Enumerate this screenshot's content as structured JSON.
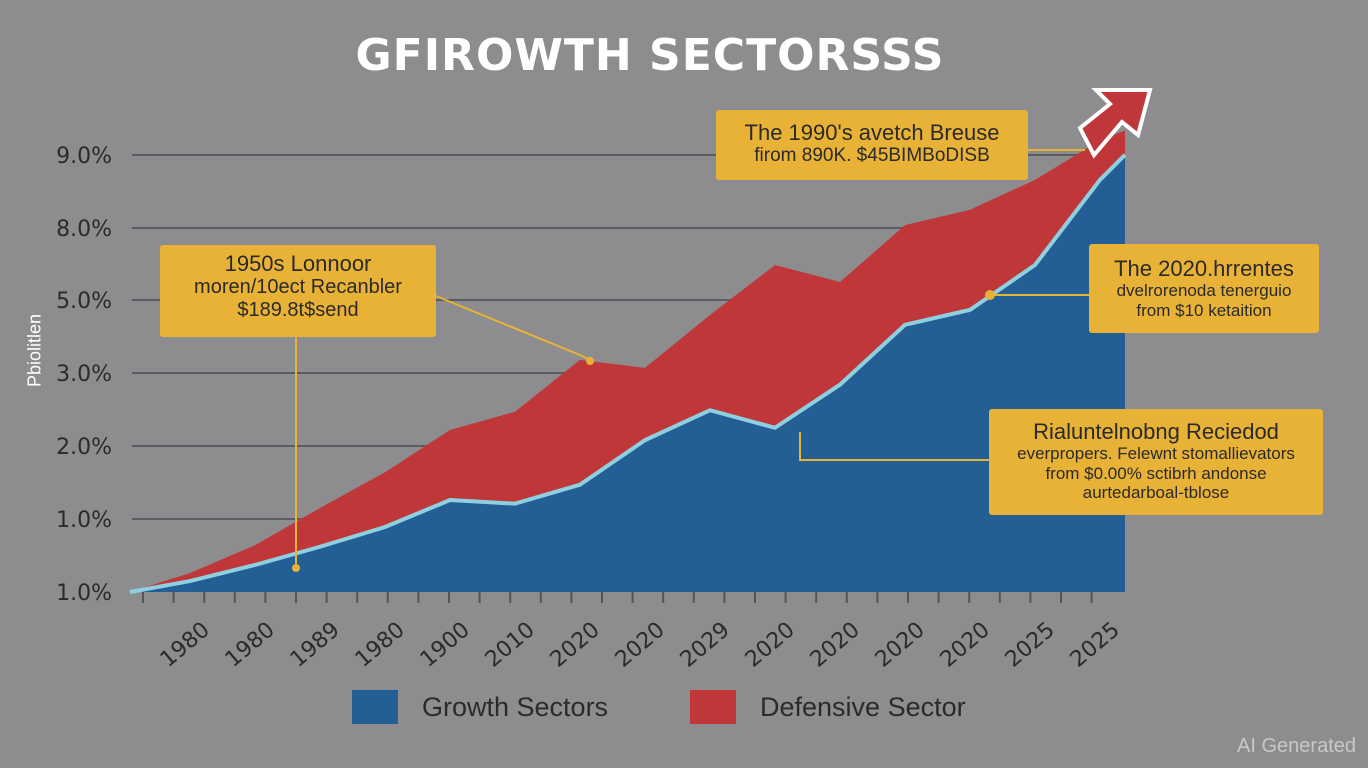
{
  "title": "GFIROWTH SECTORSSS",
  "watermark": "AI Generated",
  "colors": {
    "background": "#8d8d90",
    "growth": "#235f94",
    "defensive": "#c0373a",
    "growth_line": "#8fd0e0",
    "annotation": "#e8b236"
  },
  "annotations": [
    {
      "lines": [
        "1950s Lonnoor",
        "moren/10ect Recanbler",
        "$189.8t$send"
      ]
    },
    {
      "lines": [
        "The 1990's avetch Breuse",
        "firom 890K. $45BIMBoDISB"
      ]
    },
    {
      "lines": [
        "The 2020.hrrentes",
        "dvelrorenoda tenerguio",
        "from $10 ketaition"
      ]
    },
    {
      "lines": [
        "Rialuntelnobng Reciedod",
        "everpropers. Felewnt stomallievators",
        "from $0.00% sctibrh andonse",
        "aurtedarboal-tblose"
      ]
    }
  ],
  "chart_data": {
    "type": "area",
    "title": "GFIROWTH SECTORSSS",
    "ylabel": "Pbiolitlen",
    "xlabel": "",
    "y_ticks": [
      "1.0%",
      "1.0%",
      "2.0%",
      "3.0%",
      "5.0%",
      "8.0%",
      "9.0%"
    ],
    "categories": [
      "1980",
      "1980",
      "1989",
      "1980",
      "1900",
      "2010",
      "2020",
      "2020",
      "2029",
      "2020",
      "2020",
      "2020",
      "2020",
      "2025",
      "2025"
    ],
    "grid": true,
    "legend": "bottom",
    "series": [
      {
        "name": "Growth Sectors",
        "values": [
          0.15,
          0.37,
          0.62,
          0.89,
          1.26,
          1.21,
          1.47,
          2.08,
          2.49,
          2.25,
          2.84,
          4.32,
          4.73,
          6.46,
          8.66
        ]
      },
      {
        "name": "Defensive Sector",
        "values": [
          0.26,
          0.64,
          1.15,
          1.64,
          2.22,
          2.47,
          3.36,
          3.14,
          4.59,
          6.46,
          5.75,
          8.04,
          8.25,
          8.66,
          9.2
        ]
      }
    ]
  },
  "legend": [
    {
      "label": "Growth Sectors"
    },
    {
      "label": "Defensive Sector"
    }
  ]
}
